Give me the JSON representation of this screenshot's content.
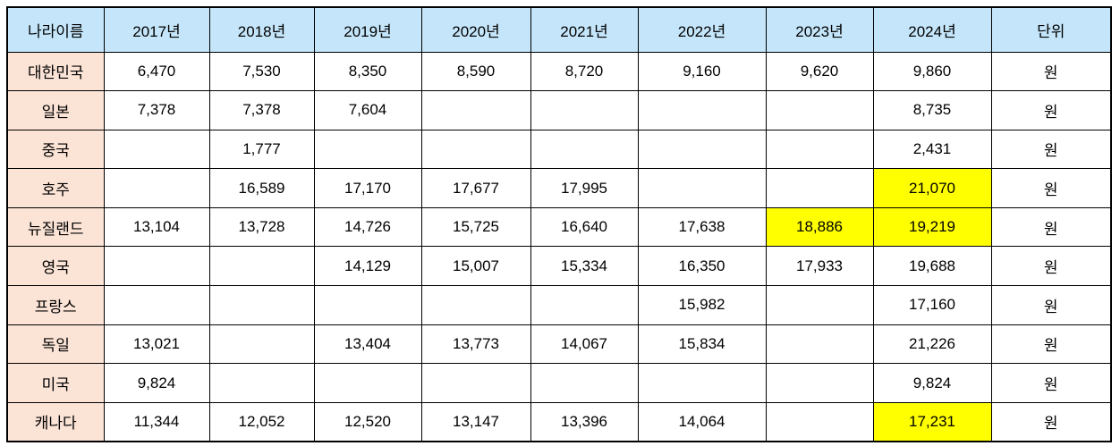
{
  "colors": {
    "header_bg": "#C5E6FA",
    "row_label_bg": "#FBE3D6",
    "highlight_bg": "#FFFF00",
    "border": "#000000",
    "text": "#000000"
  },
  "chart_data": {
    "type": "table",
    "title": "",
    "columns": [
      "나라이름",
      "2017년",
      "2018년",
      "2019년",
      "2020년",
      "2021년",
      "2022년",
      "2023년",
      "2024년",
      "단위"
    ],
    "unit_label": "원",
    "rows": [
      {
        "country": "대한민국",
        "values": [
          "6,470",
          "7,530",
          "8,350",
          "8,590",
          "8,720",
          "9,160",
          "9,620",
          "9,860"
        ],
        "unit": "원",
        "highlights": []
      },
      {
        "country": "일본",
        "values": [
          "7,378",
          "7,378",
          "7,604",
          "",
          "",
          "",
          "",
          "8,735"
        ],
        "unit": "원",
        "highlights": []
      },
      {
        "country": "중국",
        "values": [
          "",
          "1,777",
          "",
          "",
          "",
          "",
          "",
          "2,431"
        ],
        "unit": "원",
        "highlights": []
      },
      {
        "country": "호주",
        "values": [
          "",
          "16,589",
          "17,170",
          "17,677",
          "17,995",
          "",
          "",
          "21,070"
        ],
        "unit": "원",
        "highlights": [
          7
        ]
      },
      {
        "country": "뉴질랜드",
        "values": [
          "13,104",
          "13,728",
          "14,726",
          "15,725",
          "16,640",
          "17,638",
          "18,886",
          "19,219"
        ],
        "unit": "원",
        "highlights": [
          6,
          7
        ]
      },
      {
        "country": "영국",
        "values": [
          "",
          "",
          "14,129",
          "15,007",
          "15,334",
          "16,350",
          "17,933",
          "19,688"
        ],
        "unit": "원",
        "highlights": []
      },
      {
        "country": "프랑스",
        "values": [
          "",
          "",
          "",
          "",
          "",
          "15,982",
          "",
          "17,160"
        ],
        "unit": "원",
        "highlights": []
      },
      {
        "country": "독일",
        "values": [
          "13,021",
          "",
          "13,404",
          "13,773",
          "14,067",
          "15,834",
          "",
          "21,226"
        ],
        "unit": "원",
        "highlights": []
      },
      {
        "country": "미국",
        "values": [
          "9,824",
          "",
          "",
          "",
          "",
          "",
          "",
          "9,824"
        ],
        "unit": "원",
        "highlights": []
      },
      {
        "country": "캐나다",
        "values": [
          "11,344",
          "12,052",
          "12,520",
          "13,147",
          "13,396",
          "14,064",
          "",
          "17,231"
        ],
        "unit": "원",
        "highlights": [
          7
        ]
      }
    ]
  }
}
